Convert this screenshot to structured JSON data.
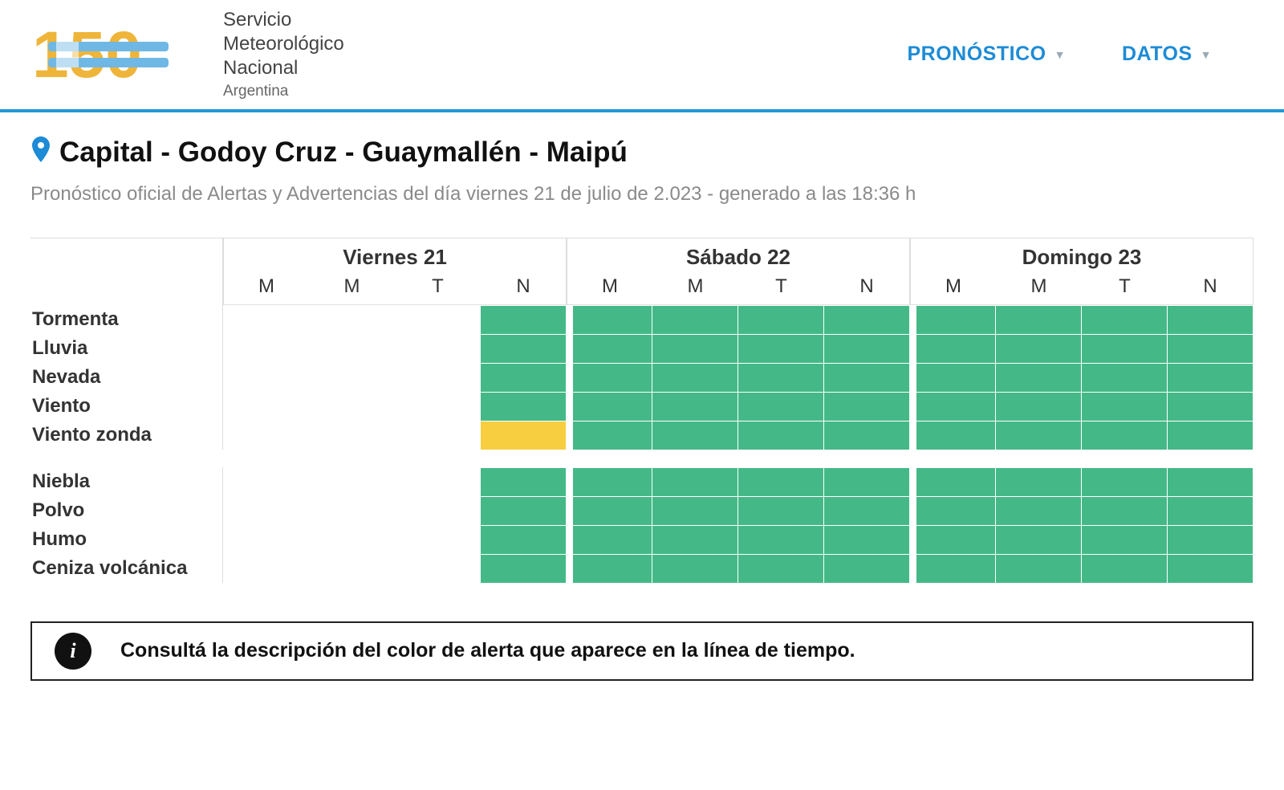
{
  "org": {
    "line1": "Servicio",
    "line2": "Meteorológico",
    "line3": "Nacional",
    "sub": "Argentina"
  },
  "nav": {
    "pronostico": "PRONÓSTICO",
    "datos": "DATOS"
  },
  "title": "Capital - Godoy Cruz - Guaymallén - Maipú",
  "subtitle": "Pronóstico oficial de Alertas y Advertencias del día viernes 21 de julio de 2.023 - generado a las 18:36 h",
  "days": [
    {
      "label": "Viernes 21",
      "parts": [
        "M",
        "M",
        "T",
        "N"
      ]
    },
    {
      "label": "Sábado 22",
      "parts": [
        "M",
        "M",
        "T",
        "N"
      ]
    },
    {
      "label": "Domingo 23",
      "parts": [
        "M",
        "M",
        "T",
        "N"
      ]
    }
  ],
  "colors": {
    "none": "transparent",
    "green": "#44b987",
    "yellow": "#f7ce3f",
    "grid_border": "#dddddd",
    "nav_link": "#1d8bd6",
    "title_text": "#111111",
    "subtitle_text": "#8a8a8a"
  },
  "row_groups": [
    {
      "rows": [
        {
          "label": "Tormenta",
          "cells": [
            "none",
            "none",
            "none",
            "green",
            "green",
            "green",
            "green",
            "green",
            "green",
            "green",
            "green",
            "green"
          ]
        },
        {
          "label": "Lluvia",
          "cells": [
            "none",
            "none",
            "none",
            "green",
            "green",
            "green",
            "green",
            "green",
            "green",
            "green",
            "green",
            "green"
          ]
        },
        {
          "label": "Nevada",
          "cells": [
            "none",
            "none",
            "none",
            "green",
            "green",
            "green",
            "green",
            "green",
            "green",
            "green",
            "green",
            "green"
          ]
        },
        {
          "label": "Viento",
          "cells": [
            "none",
            "none",
            "none",
            "green",
            "green",
            "green",
            "green",
            "green",
            "green",
            "green",
            "green",
            "green"
          ]
        },
        {
          "label": "Viento zonda",
          "cells": [
            "none",
            "none",
            "none",
            "yellow",
            "green",
            "green",
            "green",
            "green",
            "green",
            "green",
            "green",
            "green"
          ]
        }
      ]
    },
    {
      "rows": [
        {
          "label": "Niebla",
          "cells": [
            "none",
            "none",
            "none",
            "green",
            "green",
            "green",
            "green",
            "green",
            "green",
            "green",
            "green",
            "green"
          ]
        },
        {
          "label": "Polvo",
          "cells": [
            "none",
            "none",
            "none",
            "green",
            "green",
            "green",
            "green",
            "green",
            "green",
            "green",
            "green",
            "green"
          ]
        },
        {
          "label": "Humo",
          "cells": [
            "none",
            "none",
            "none",
            "green",
            "green",
            "green",
            "green",
            "green",
            "green",
            "green",
            "green",
            "green"
          ]
        },
        {
          "label": "Ceniza volcánica",
          "cells": [
            "none",
            "none",
            "none",
            "green",
            "green",
            "green",
            "green",
            "green",
            "green",
            "green",
            "green",
            "green"
          ]
        }
      ]
    }
  ],
  "info": "Consultá la descripción del color de alerta que aparece en la línea de tiempo."
}
